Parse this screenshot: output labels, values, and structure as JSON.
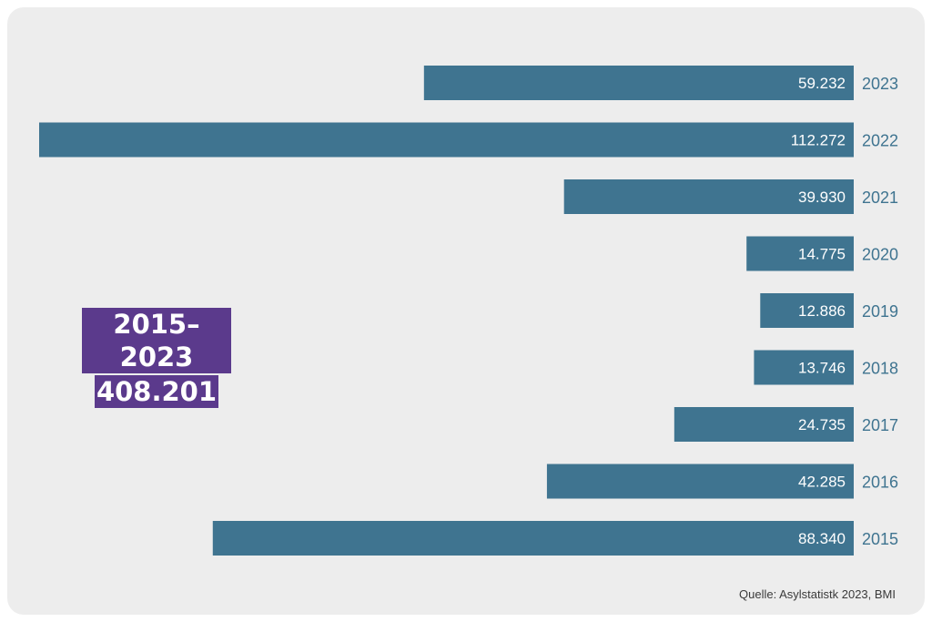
{
  "chart_data": {
    "type": "bar",
    "orientation": "horizontal",
    "categories": [
      "2023",
      "2022",
      "2021",
      "2020",
      "2019",
      "2018",
      "2017",
      "2016",
      "2015"
    ],
    "values": [
      59232,
      112272,
      39930,
      14775,
      12886,
      13746,
      24735,
      42285,
      88340
    ],
    "value_labels": [
      "59.232",
      "112.272",
      "39.930",
      "14.775",
      "12.886",
      "13.746",
      "24.735",
      "42.285",
      "88.340"
    ],
    "xlim": [
      0,
      112272
    ],
    "bar_color": "#3f7490",
    "category_label_color": "#3f7490",
    "grid": false,
    "legend": "none"
  },
  "summary": {
    "period": "2015–2023",
    "total": "408.201",
    "highlight_color": "#5b3a8c"
  },
  "source": "Quelle: Asylstatistk 2023, BMI"
}
